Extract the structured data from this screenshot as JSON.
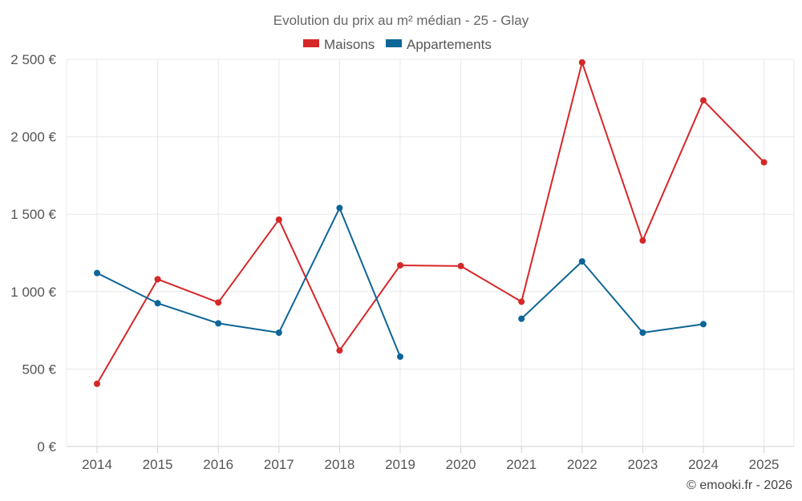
{
  "chart_data": {
    "type": "line",
    "title": "Evolution du prix au m² médian - 25 - Glay",
    "categories": [
      "2014",
      "2015",
      "2016",
      "2017",
      "2018",
      "2019",
      "2020",
      "2021",
      "2022",
      "2023",
      "2024",
      "2025"
    ],
    "ylim": [
      0,
      2500
    ],
    "yticks": [
      0,
      500,
      1000,
      1500,
      2000,
      2500
    ],
    "ytick_labels": [
      "0 €",
      "500 €",
      "1 000 €",
      "1 500 €",
      "2 000 €",
      "2 500 €"
    ],
    "grid": true,
    "legend_position": "top-center",
    "series": [
      {
        "name": "Maisons",
        "color": "#d62728",
        "values": [
          405,
          1080,
          930,
          1465,
          620,
          1170,
          1165,
          935,
          2480,
          1330,
          2235,
          1835
        ]
      },
      {
        "name": "Appartements",
        "color": "#0e6597",
        "values": [
          1120,
          925,
          795,
          735,
          1540,
          580,
          null,
          825,
          1195,
          735,
          790,
          null
        ]
      }
    ],
    "credit": "© emooki.fr - 2026"
  }
}
